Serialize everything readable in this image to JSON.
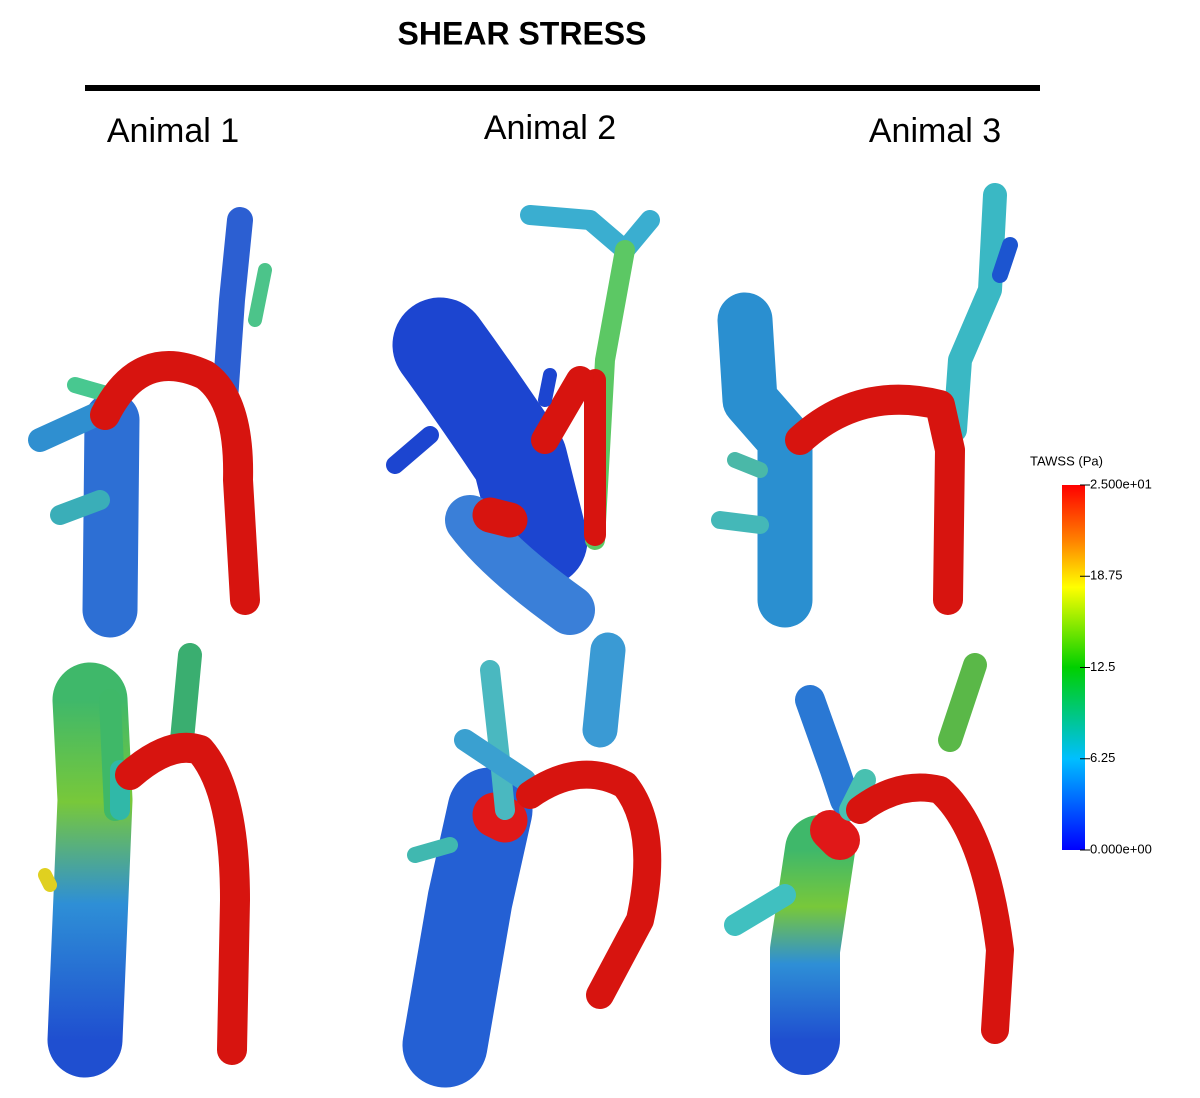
{
  "title": "SHEAR STRESS",
  "columns": [
    "Animal 1",
    "Animal 2",
    "Animal 3"
  ],
  "colorbar": {
    "title": "TAWSS (Pa)",
    "lim": [
      0,
      25
    ],
    "ticks": [
      {
        "value": 25,
        "label": "2.500e+01"
      },
      18.75,
      12.5,
      6.25,
      {
        "value": 0,
        "label": "0.000e+00"
      }
    ]
  }
}
